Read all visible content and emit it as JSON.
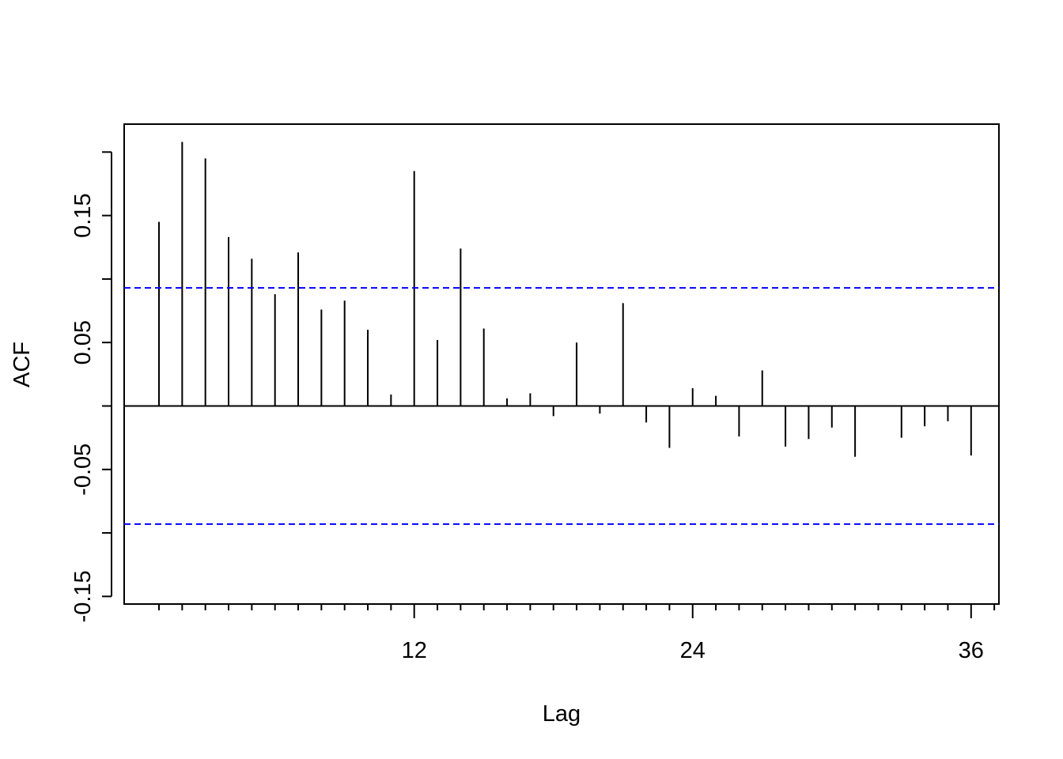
{
  "chart_data": {
    "type": "bar",
    "xlabel": "Lag",
    "ylabel": "ACF",
    "xlim": [
      -0.5,
      37.2
    ],
    "ylim": [
      -0.156,
      0.222
    ],
    "x_ticks": [
      1,
      2,
      3,
      4,
      5,
      6,
      7,
      8,
      9,
      10,
      11,
      12,
      13,
      14,
      15,
      16,
      17,
      18,
      19,
      20,
      21,
      22,
      23,
      24,
      25,
      26,
      27,
      28,
      29,
      30,
      31,
      32,
      33,
      34,
      35,
      36,
      37
    ],
    "x_tick_labels": [
      {
        "value": 12,
        "label": "12"
      },
      {
        "value": 24,
        "label": "24"
      },
      {
        "value": 36,
        "label": "36"
      }
    ],
    "y_ticks": [
      -0.15,
      -0.1,
      -0.05,
      0.0,
      0.05,
      0.1,
      0.15,
      0.2
    ],
    "y_tick_labels": [
      {
        "value": -0.15,
        "label": "-0.15"
      },
      {
        "value": -0.05,
        "label": "-0.05"
      },
      {
        "value": 0.05,
        "label": "0.05"
      },
      {
        "value": 0.15,
        "label": "0.15"
      }
    ],
    "lags": [
      1,
      2,
      3,
      4,
      5,
      6,
      7,
      8,
      9,
      10,
      11,
      12,
      13,
      14,
      15,
      16,
      17,
      18,
      19,
      20,
      21,
      22,
      23,
      24,
      25,
      26,
      27,
      28,
      29,
      30,
      31,
      32,
      33,
      34,
      35,
      36
    ],
    "values": [
      0.145,
      0.208,
      0.195,
      0.133,
      0.116,
      0.088,
      0.121,
      0.076,
      0.083,
      0.06,
      0.009,
      0.185,
      0.052,
      0.124,
      0.061,
      0.006,
      0.01,
      -0.008,
      0.05,
      -0.006,
      0.081,
      -0.013,
      -0.033,
      0.014,
      0.008,
      -0.024,
      0.028,
      -0.032,
      -0.026,
      -0.017,
      -0.04,
      0.0,
      -0.025,
      -0.016,
      -0.012,
      -0.039
    ],
    "confidence_bound": 0.093,
    "colors": {
      "bars": "#000000",
      "confidence_lines": "#0000ff",
      "axes": "#000000"
    }
  }
}
